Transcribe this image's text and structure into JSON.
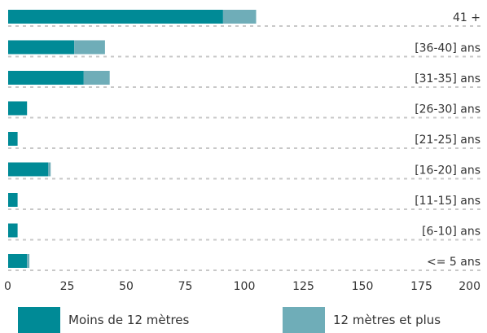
{
  "colors": {
    "series1": "#008a96",
    "series2": "#6fadb8",
    "grid": "#c8c8c8",
    "text": "#333333"
  },
  "legend": {
    "series1_label": "Moins de 12 mètres",
    "series2_label": "12 mètres et plus"
  },
  "chart_data": {
    "type": "bar",
    "orientation": "horizontal",
    "stacked": true,
    "categories": [
      "41 +",
      "[36-40] ans",
      "[31-35] ans",
      "[26-30] ans",
      "[21-25] ans",
      "[16-20] ans",
      "[11-15] ans",
      "[6-10] ans",
      "<= 5 ans"
    ],
    "series": [
      {
        "name": "Moins de 12 mètres",
        "values": [
          91,
          28,
          32,
          8,
          4,
          17,
          4,
          4,
          8
        ]
      },
      {
        "name": "12 mètres et plus",
        "values": [
          14,
          13,
          11,
          0,
          0,
          1,
          0,
          0,
          1
        ]
      }
    ],
    "xlim": [
      0,
      200
    ],
    "xticks": [
      "0",
      "25",
      "50",
      "75",
      "100",
      "125",
      "150",
      "175",
      "200"
    ],
    "grid": "dotted horizontal lines under each bar",
    "legend_position": "bottom",
    "category_label_position": "right"
  }
}
